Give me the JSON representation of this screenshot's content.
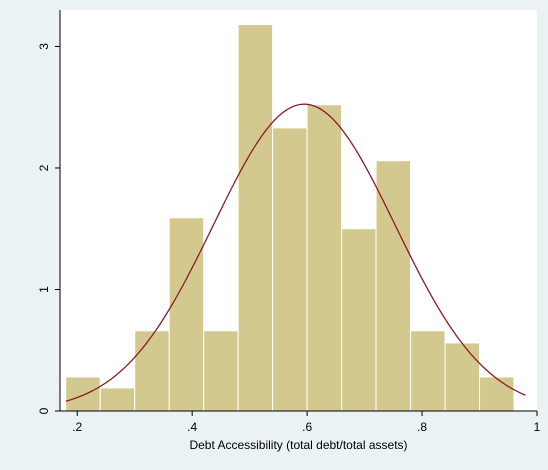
{
  "chart_data": {
    "type": "bar",
    "subtype": "histogram",
    "title": "",
    "xlabel": "Debt Accessibility (total debt/total assets)",
    "ylabel": "",
    "xlim": [
      0.17,
      1.0
    ],
    "ylim": [
      0,
      3.3
    ],
    "x_ticks": [
      {
        "value": 0.2,
        "label": ".2"
      },
      {
        "value": 0.4,
        "label": ".4"
      },
      {
        "value": 0.6,
        "label": ".6"
      },
      {
        "value": 0.8,
        "label": ".8"
      },
      {
        "value": 1.0,
        "label": "1"
      }
    ],
    "y_ticks": [
      {
        "value": 0,
        "label": "0"
      },
      {
        "value": 1,
        "label": "1"
      },
      {
        "value": 2,
        "label": "2"
      },
      {
        "value": 3,
        "label": "3"
      }
    ],
    "bins": [
      {
        "start": 0.18,
        "end": 0.24,
        "density": 0.28
      },
      {
        "start": 0.24,
        "end": 0.3,
        "density": 0.19
      },
      {
        "start": 0.3,
        "end": 0.36,
        "density": 0.66
      },
      {
        "start": 0.36,
        "end": 0.42,
        "density": 1.59
      },
      {
        "start": 0.42,
        "end": 0.48,
        "density": 0.66
      },
      {
        "start": 0.48,
        "end": 0.54,
        "density": 3.18
      },
      {
        "start": 0.54,
        "end": 0.6,
        "density": 2.33
      },
      {
        "start": 0.6,
        "end": 0.66,
        "density": 2.52
      },
      {
        "start": 0.66,
        "end": 0.72,
        "density": 1.5
      },
      {
        "start": 0.72,
        "end": 0.78,
        "density": 2.06
      },
      {
        "start": 0.78,
        "end": 0.84,
        "density": 0.66
      },
      {
        "start": 0.84,
        "end": 0.9,
        "density": 0.56
      },
      {
        "start": 0.9,
        "end": 0.96,
        "density": 0.28
      }
    ],
    "normal_curve": {
      "mean": 0.595,
      "sd": 0.158,
      "x_range": [
        0.18,
        0.98
      ]
    },
    "grid": false,
    "legend": "none"
  },
  "colors": {
    "background": "#eaf2f3",
    "plot_background": "#ffffff",
    "bar_fill": "#d3c98f",
    "bar_stroke": "#ffffff",
    "curve": "#8c1a2e",
    "axis": "#000000"
  }
}
